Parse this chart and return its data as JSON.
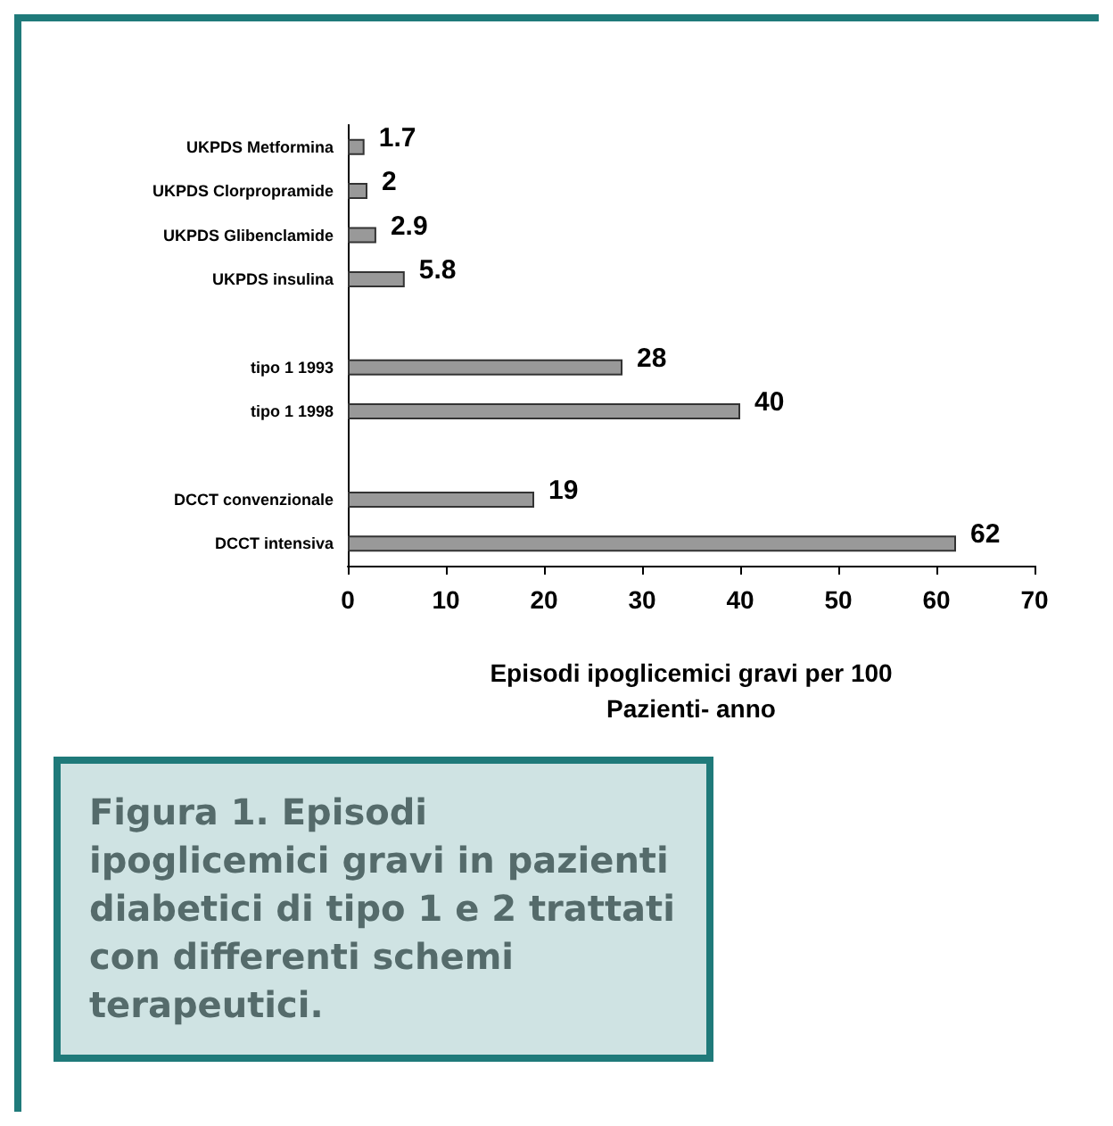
{
  "chart_data": {
    "type": "bar",
    "orientation": "horizontal",
    "xlabel": "Episodi ipoglicemici gravi per 100\nPazienti- anno",
    "categories": [
      "UKPDS Metformina",
      "UKPDS Clorpropramide",
      "UKPDS Glibenclamide",
      "UKPDS insulina",
      null,
      "tipo 1 1993",
      "tipo 1 1998",
      null,
      "DCCT convenzionale",
      "DCCT intensiva"
    ],
    "values": [
      1.7,
      2,
      2.9,
      5.8,
      null,
      28,
      40,
      null,
      19,
      62
    ],
    "color": "#999999",
    "data_labels": true,
    "xlim": [
      0,
      70
    ],
    "xticks": [
      0,
      10,
      20,
      30,
      40,
      50,
      60,
      70
    ],
    "grid": false,
    "annotations": [
      "Figura 1.  Episodi ipoglicemici gravi in pazienti diabetici di tipo 1 e 2 trattati con differenti schemi terapeutici."
    ]
  }
}
